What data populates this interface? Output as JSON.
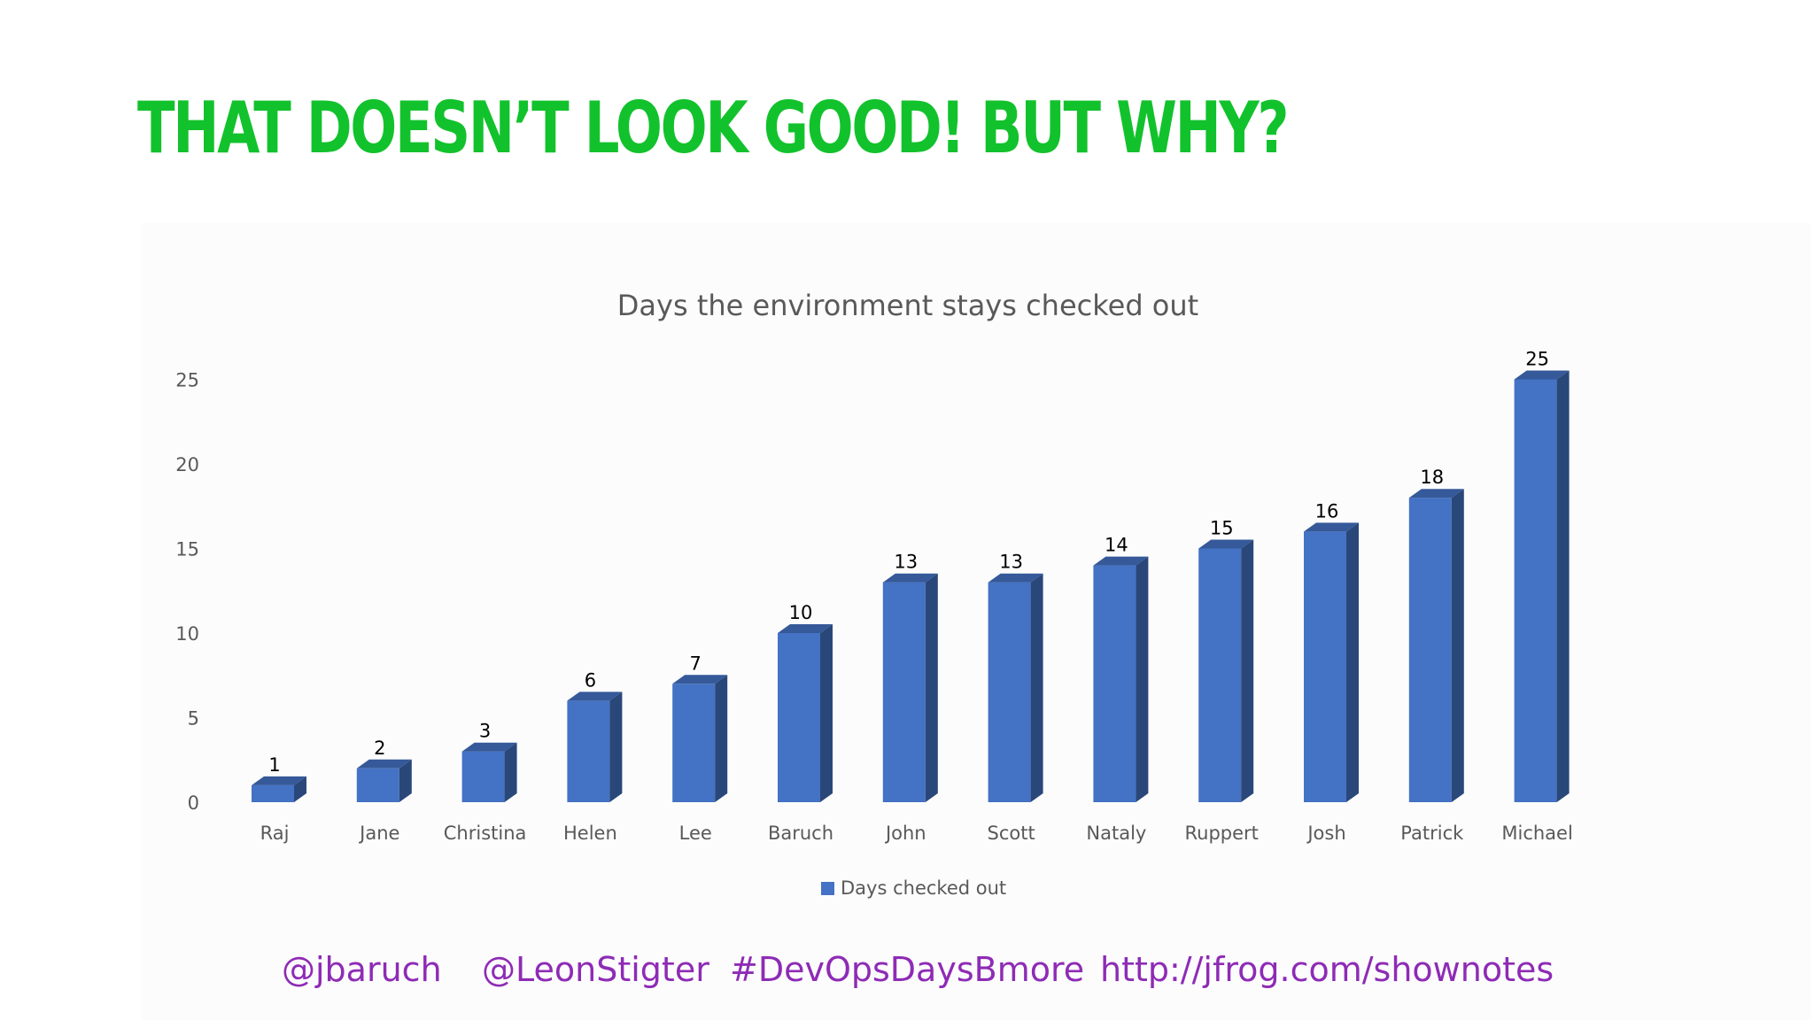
{
  "slide": {
    "title": "THAT DOESN’T LOOK GOOD! BUT WHY?",
    "title_color": "#12c22c"
  },
  "footer": {
    "color": "#8e2bb5",
    "links": [
      "@jbaruch",
      "@LeonStigter",
      "#DevOpsDaysBmore",
      "http://jfrog.com/shownotes"
    ]
  },
  "chart_data": {
    "type": "bar",
    "style": "3d-column",
    "title": "Days the environment stays checked out",
    "xlabel": "",
    "ylabel": "",
    "categories": [
      "Raj",
      "Jane",
      "Christina",
      "Helen",
      "Lee",
      "Baruch",
      "John",
      "Scott",
      "Nataly",
      "Ruppert",
      "Josh",
      "Patrick",
      "Michael"
    ],
    "series": [
      {
        "name": "Days checked out",
        "color": "#4472c4",
        "values": [
          1,
          2,
          3,
          6,
          7,
          10,
          13,
          13,
          14,
          15,
          16,
          18,
          25
        ]
      }
    ],
    "ylim": [
      0,
      25
    ],
    "yticks": [
      0,
      5,
      10,
      15,
      20,
      25
    ],
    "grid": false,
    "data_labels": true,
    "legend_position": "bottom"
  }
}
